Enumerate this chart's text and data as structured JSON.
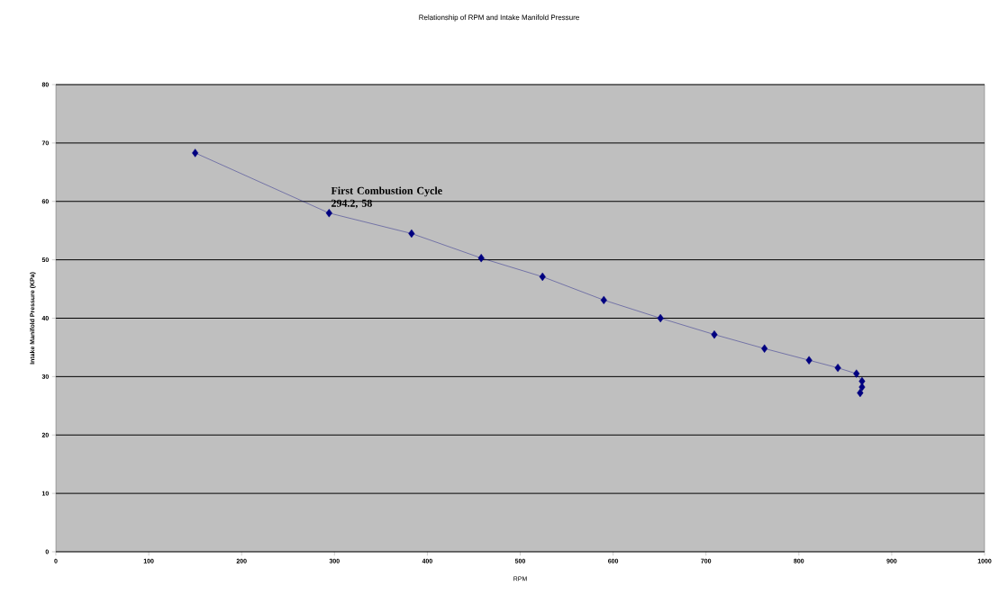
{
  "chart_data": {
    "type": "line",
    "title": "Relationship of RPM and Intake Manifold Pressure",
    "xlabel": "RPM",
    "ylabel": "Intake Manifold Pressure (KPa)",
    "x": [
      150,
      294.2,
      383,
      458,
      524,
      590,
      651,
      709,
      763,
      811,
      842,
      862,
      868,
      868,
      866
    ],
    "series": [
      {
        "color": "#000080",
        "values": [
          68.3,
          58,
          54.5,
          50.3,
          47.1,
          43.1,
          40,
          37.2,
          34.8,
          32.8,
          31.5,
          30.5,
          29.2,
          28.2,
          27.2
        ]
      }
    ],
    "xlim": [
      0,
      1000
    ],
    "ylim": [
      0,
      80
    ],
    "xticks": [
      0,
      100,
      200,
      300,
      400,
      500,
      600,
      700,
      800,
      900,
      1000
    ],
    "yticks": [
      0,
      10,
      20,
      30,
      40,
      50,
      60,
      70,
      80
    ],
    "grid": "y",
    "marker": "diamond",
    "line_style": "solid",
    "annotations": [
      {
        "text": "First Combustion Cycle 294.2, 58",
        "x": 294.2,
        "y": 58
      }
    ]
  }
}
